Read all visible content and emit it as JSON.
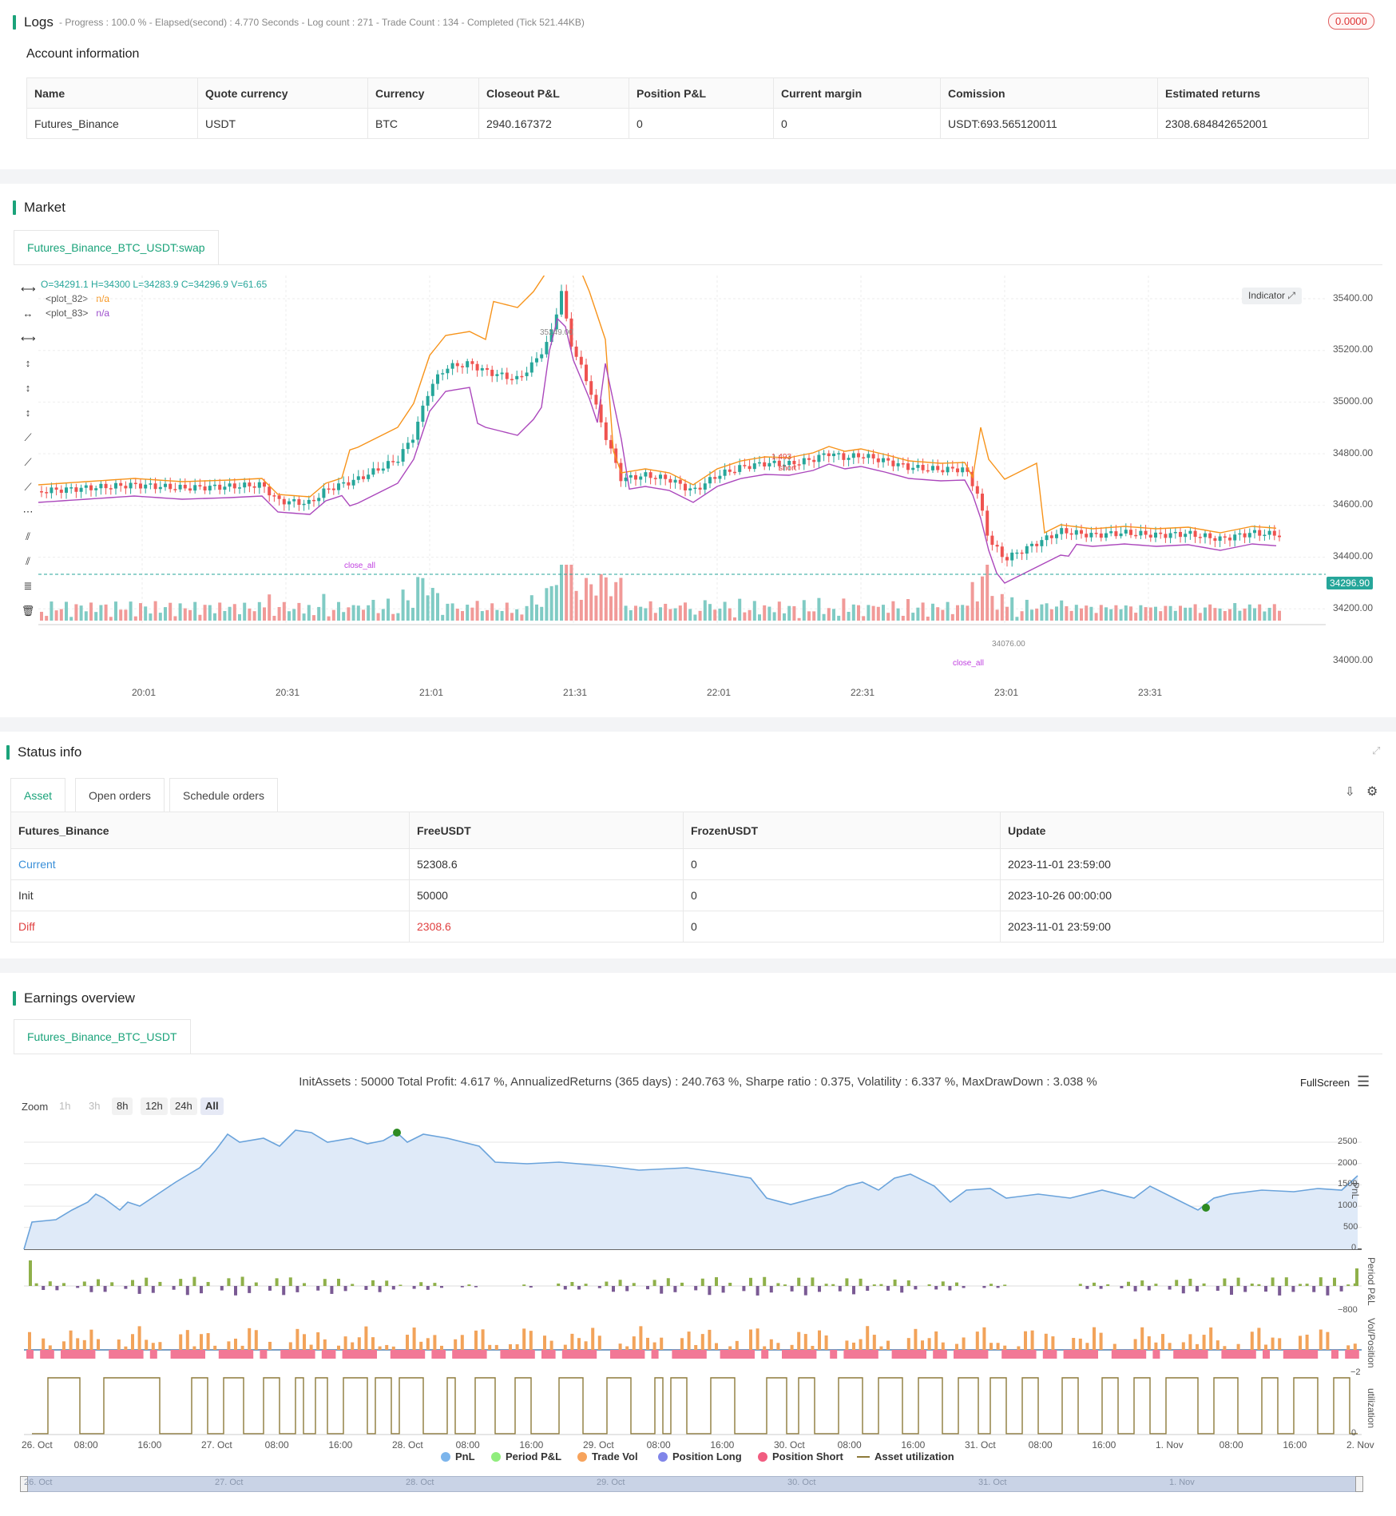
{
  "logs": {
    "title": "Logs",
    "status": "- Progress : 100.0 % - Elapsed(second) : 4.770 Seconds - Log count : 271 - Trade Count : 134 - Completed (Tick 521.44KB)",
    "badge": "0.0000"
  },
  "account": {
    "title": "Account information",
    "headers": [
      "Name",
      "Quote currency",
      "Currency",
      "Closeout P&L",
      "Position P&L",
      "Current margin",
      "Comission",
      "Estimated returns"
    ],
    "row": [
      "Futures_Binance",
      "USDT",
      "BTC",
      "2940.167372",
      "0",
      "0",
      "USDT:693.565120011",
      "2308.684842652001"
    ]
  },
  "market": {
    "title": "Market",
    "tab": "Futures_Binance_BTC_USDT:swap",
    "ohlc": "O=34291.1 H=34300 L=34283.9 C=34296.9 V=61.65",
    "plots": [
      {
        "name": "<plot_82>",
        "value": "n/a",
        "color": "#f7931a"
      },
      {
        "name": "<plot_83>",
        "value": "n/a",
        "color": "#9c4dcc"
      }
    ],
    "indicator_btn": "Indicator",
    "price_labels": [
      "35400.00",
      "35200.00",
      "35000.00",
      "34800.00",
      "34600.00",
      "34400.00",
      "34200.00",
      "34000.00"
    ],
    "current_price": "34296.90",
    "time_labels": [
      "20:01",
      "20:31",
      "21:01",
      "21:31",
      "22:01",
      "22:31",
      "23:01",
      "23:31"
    ],
    "annotations": {
      "high": "35249.00",
      "low": "34076.00",
      "short_qty": "1.493",
      "short": "short",
      "close_all": "close_all"
    }
  },
  "status": {
    "title": "Status info",
    "tabs": [
      "Asset",
      "Open orders",
      "Schedule orders"
    ],
    "headers": [
      "Futures_Binance",
      "FreeUSDT",
      "FrozenUSDT",
      "Update"
    ],
    "rows": [
      {
        "label": "Current",
        "free": "52308.6",
        "frozen": "0",
        "update": "2023-11-01 23:59:00"
      },
      {
        "label": "Init",
        "free": "50000",
        "frozen": "0",
        "update": "2023-10-26 00:00:00"
      },
      {
        "label": "Diff",
        "free": "2308.6",
        "frozen": "0",
        "update": "2023-11-01 23:59:00"
      }
    ]
  },
  "earnings": {
    "title": "Earnings overview",
    "tab": "Futures_Binance_BTC_USDT",
    "summary": "InitAssets : 50000 Total Profit: 4.617 %, AnnualizedReturns (365 days) : 240.763 %, Sharpe ratio : 0.375, Volatility : 6.337 %, MaxDrawDown : 3.038 %",
    "fullscreen": "FullScreen",
    "zoom_label": "Zoom",
    "zoom_buttons": [
      "1h",
      "3h",
      "8h",
      "12h",
      "24h",
      "All"
    ],
    "pnl_ticks": [
      "2500",
      "2000",
      "1500",
      "1000",
      "500",
      "0"
    ],
    "period_tick": "−800",
    "vol_tick": "−2",
    "util_tick": "0",
    "axis_titles": [
      "PnL",
      "Period P&L",
      "Vol/Position",
      "utilization"
    ],
    "x_labels": [
      "26. Oct",
      "08:00",
      "16:00",
      "27. Oct",
      "08:00",
      "16:00",
      "28. Oct",
      "08:00",
      "16:00",
      "29. Oct",
      "08:00",
      "16:00",
      "30. Oct",
      "08:00",
      "16:00",
      "31. Oct",
      "08:00",
      "16:00",
      "1. Nov",
      "08:00",
      "16:00",
      "2. Nov"
    ],
    "navigator_labels": [
      "26. Oct",
      "27. Oct",
      "28. Oct",
      "29. Oct",
      "30. Oct",
      "31. Oct",
      "1. Nov"
    ],
    "legend": [
      {
        "name": "PnL",
        "color": "#7cb5ec"
      },
      {
        "name": "Period P&L",
        "color": "#90ed7d"
      },
      {
        "name": "Trade Vol",
        "color": "#f7a35c"
      },
      {
        "name": "Position Long",
        "color": "#8085e9"
      },
      {
        "name": "Position Short",
        "color": "#f15c80"
      },
      {
        "name": "Asset utilization",
        "color": "#8d7a3a"
      }
    ]
  }
}
